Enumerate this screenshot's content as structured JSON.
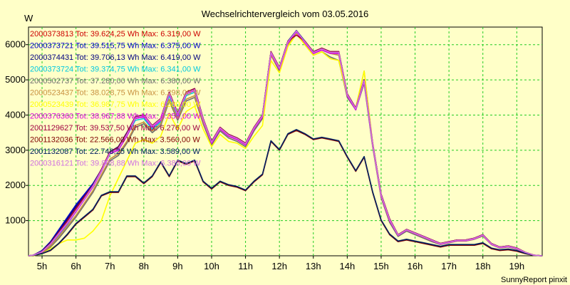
{
  "chart_data": {
    "type": "line",
    "title": "Wechselrichtervergleich vom 03.05.2016",
    "ylabel": "W",
    "xlabel": "",
    "credit": "SunnyReport pinxit",
    "ylim": [
      0,
      6500
    ],
    "xlim": [
      4.6,
      19.75
    ],
    "x_ticks": [
      5,
      6,
      7,
      8,
      9,
      10,
      11,
      12,
      13,
      14,
      15,
      16,
      17,
      18,
      19
    ],
    "x_tick_labels": [
      "5h",
      "6h",
      "7h",
      "8h",
      "9h",
      "10h",
      "11h",
      "12h",
      "13h",
      "14h",
      "15h",
      "16h",
      "17h",
      "18h",
      "19h"
    ],
    "y_ticks": [
      1000,
      2000,
      3000,
      4000,
      5000,
      6000
    ],
    "y_tick_labels": [
      "1000",
      "2000",
      "3000",
      "4000",
      "5000",
      "6000"
    ],
    "grid": true,
    "legend_position": "top-left",
    "colors": {
      "background": "#ffffc8",
      "plot_background": "#ffffc8",
      "grid": "#22cc22",
      "axis": "#000000"
    },
    "x": [
      4.6,
      4.75,
      5.0,
      5.25,
      5.5,
      5.75,
      6.0,
      6.25,
      6.5,
      6.75,
      7.0,
      7.25,
      7.5,
      7.75,
      8.0,
      8.25,
      8.5,
      8.75,
      9.0,
      9.25,
      9.5,
      9.75,
      10.0,
      10.25,
      10.5,
      10.75,
      11.0,
      11.25,
      11.5,
      11.75,
      12.0,
      12.25,
      12.5,
      12.75,
      13.0,
      13.25,
      13.5,
      13.75,
      14.0,
      14.25,
      14.5,
      14.75,
      15.0,
      15.25,
      15.5,
      15.75,
      16.0,
      16.25,
      16.5,
      16.75,
      17.0,
      17.25,
      17.5,
      17.75,
      18.0,
      18.25,
      18.5,
      18.75,
      19.0,
      19.25,
      19.5,
      19.75
    ],
    "series": [
      {
        "name": "2000373813 Tot: 39.624,25 Wh Max: 6.319,00 W",
        "color": "#cc0000",
        "values": [
          0,
          20,
          120,
          350,
          650,
          950,
          1300,
          1650,
          2000,
          2450,
          2950,
          3050,
          3450,
          3950,
          4000,
          3700,
          3900,
          4650,
          4050,
          4650,
          4750,
          3900,
          3250,
          3650,
          3450,
          3350,
          3200,
          3650,
          4000,
          5800,
          5350,
          6100,
          6350,
          6100,
          5800,
          5900,
          5800,
          5800,
          4600,
          4200,
          5000,
          3200,
          1750,
          1050,
          600,
          750,
          650,
          550,
          450,
          350,
          400,
          450,
          450,
          500,
          600,
          350,
          250,
          280,
          220,
          100,
          20,
          0
        ]
      },
      {
        "name": "2000373721 Tot: 39.515,75 Wh Max: 6.375,00 W",
        "color": "#0000cc",
        "values": [
          0,
          20,
          150,
          400,
          750,
          1100,
          1450,
          1750,
          2050,
          2450,
          2900,
          3050,
          3450,
          3900,
          3950,
          3650,
          3850,
          4600,
          4000,
          4600,
          4700,
          3850,
          3200,
          3600,
          3400,
          3300,
          3150,
          3600,
          3950,
          5750,
          5300,
          6050,
          6300,
          6050,
          5750,
          5850,
          5750,
          5750,
          4550,
          4150,
          4950,
          3150,
          1700,
          1000,
          580,
          730,
          630,
          530,
          430,
          330,
          380,
          430,
          430,
          480,
          580,
          330,
          230,
          260,
          200,
          90,
          15,
          0
        ]
      },
      {
        "name": "2000374431 Tot: 39.706,13 Wh Max: 6.419,00 W",
        "color": "#000080",
        "values": [
          0,
          20,
          130,
          380,
          700,
          1050,
          1400,
          1700,
          2000,
          2450,
          2950,
          3100,
          3500,
          3950,
          4000,
          3700,
          3900,
          4650,
          4050,
          4650,
          4750,
          3900,
          3250,
          3650,
          3450,
          3350,
          3200,
          3650,
          4000,
          5800,
          5350,
          6100,
          6400,
          6100,
          5800,
          5900,
          5800,
          5800,
          4600,
          4200,
          5000,
          3200,
          1750,
          1050,
          600,
          750,
          650,
          550,
          450,
          350,
          400,
          450,
          450,
          500,
          600,
          350,
          250,
          280,
          220,
          100,
          20,
          0
        ]
      },
      {
        "name": "2000373724 Tot: 39.374,75 Wh Max: 6.341,00 W",
        "color": "#00c8e0",
        "values": [
          0,
          20,
          100,
          300,
          600,
          900,
          1250,
          1600,
          1950,
          2400,
          2900,
          3000,
          3400,
          3850,
          3900,
          3600,
          3800,
          4550,
          3950,
          4550,
          4650,
          3850,
          3200,
          3600,
          3400,
          3300,
          3150,
          3600,
          3950,
          5750,
          5300,
          6050,
          6330,
          6050,
          5750,
          5850,
          5750,
          5700,
          4550,
          4150,
          4950,
          3150,
          1700,
          1000,
          580,
          730,
          630,
          530,
          430,
          330,
          380,
          430,
          430,
          480,
          580,
          330,
          230,
          260,
          200,
          90,
          15,
          0
        ]
      },
      {
        "name": "2000502737 Tot: 37.280,00 Wh Max: 6.380,00 W",
        "color": "#707070",
        "values": [
          0,
          10,
          80,
          250,
          500,
          800,
          1100,
          1450,
          1800,
          2250,
          2700,
          2850,
          3200,
          3650,
          3750,
          3500,
          3700,
          4400,
          3850,
          4400,
          4500,
          3750,
          3150,
          3550,
          3350,
          3250,
          3100,
          3550,
          3900,
          5700,
          5250,
          6000,
          6380,
          6000,
          5700,
          5800,
          5650,
          5550,
          4500,
          4150,
          4900,
          3100,
          1650,
          950,
          550,
          700,
          600,
          500,
          400,
          320,
          370,
          420,
          420,
          470,
          560,
          320,
          220,
          250,
          190,
          80,
          10,
          0
        ]
      },
      {
        "name": "2000523437 Tot: 38.028,75 Wh Max: 6.298,00 W",
        "color": "#c89040",
        "values": [
          0,
          10,
          90,
          280,
          550,
          850,
          1150,
          1500,
          1850,
          2300,
          2750,
          2900,
          3250,
          3700,
          3800,
          3550,
          3750,
          4450,
          3900,
          4450,
          4550,
          3800,
          3200,
          3600,
          3400,
          3300,
          3150,
          3600,
          3950,
          5700,
          5300,
          6000,
          6300,
          6050,
          5750,
          5850,
          5750,
          5700,
          4550,
          4200,
          5250,
          3200,
          1700,
          1000,
          600,
          730,
          630,
          530,
          430,
          330,
          380,
          430,
          430,
          480,
          580,
          330,
          230,
          260,
          200,
          90,
          15,
          0
        ]
      },
      {
        "name": "2000523439 Tot: 36.987,75 Wh Max: 6.380,00 W",
        "color": "#ffff00",
        "values": [
          0,
          0,
          60,
          200,
          350,
          450,
          450,
          500,
          700,
          1000,
          1700,
          2200,
          2700,
          3200,
          3300,
          3200,
          3400,
          4050,
          3600,
          4100,
          4250,
          3600,
          3100,
          3450,
          3250,
          3200,
          3050,
          3400,
          3700,
          5550,
          5200,
          5950,
          6300,
          6000,
          5700,
          5800,
          5600,
          5550,
          4550,
          4200,
          5250,
          3150,
          1700,
          1000,
          600,
          730,
          630,
          530,
          430,
          330,
          380,
          430,
          430,
          480,
          580,
          330,
          230,
          260,
          200,
          90,
          15,
          0
        ]
      },
      {
        "name": "2000376360 Tot: 38.967,88 Wh Max: 6.359,00 W",
        "color": "#e000e0",
        "values": [
          0,
          15,
          110,
          330,
          620,
          920,
          1250,
          1600,
          1950,
          2400,
          2900,
          3000,
          3400,
          3900,
          3950,
          3650,
          3850,
          4600,
          4000,
          4600,
          4700,
          3850,
          3200,
          3600,
          3400,
          3300,
          3150,
          3600,
          3950,
          5750,
          5300,
          6050,
          6360,
          6050,
          5750,
          5850,
          5750,
          5750,
          4550,
          4150,
          4950,
          3150,
          1700,
          1000,
          580,
          730,
          630,
          530,
          430,
          330,
          380,
          430,
          430,
          480,
          580,
          330,
          230,
          260,
          200,
          90,
          15,
          0
        ]
      },
      {
        "name": "2001129627 Tot: 39.537,50 Wh Max: 6.276,00 W",
        "color": "#a00040",
        "values": [
          0,
          20,
          125,
          360,
          680,
          1000,
          1350,
          1680,
          2000,
          2450,
          2950,
          3080,
          3480,
          3950,
          4000,
          3700,
          3900,
          4650,
          4050,
          4650,
          4750,
          3900,
          3250,
          3650,
          3450,
          3350,
          3200,
          3650,
          4000,
          5800,
          5350,
          6100,
          6276,
          6100,
          5800,
          5900,
          5800,
          5800,
          4600,
          4200,
          5000,
          3200,
          1750,
          1050,
          600,
          750,
          650,
          550,
          450,
          350,
          400,
          450,
          450,
          500,
          600,
          350,
          250,
          280,
          220,
          100,
          20,
          0
        ]
      },
      {
        "name": "2001132036 Tot: 22.566,00 Wh Max: 3.560,00 W",
        "color": "#800000",
        "values": [
          0,
          10,
          60,
          150,
          350,
          600,
          900,
          1100,
          1300,
          1700,
          1800,
          1800,
          2250,
          2250,
          2050,
          2250,
          2650,
          2250,
          2700,
          2600,
          2700,
          2100,
          1900,
          2100,
          2000,
          1950,
          1850,
          2100,
          2300,
          3250,
          3000,
          3450,
          3560,
          3450,
          3300,
          3350,
          3300,
          3250,
          2800,
          2400,
          2800,
          1800,
          1000,
          600,
          400,
          450,
          400,
          350,
          300,
          250,
          300,
          300,
          300,
          300,
          350,
          200,
          150,
          170,
          130,
          60,
          10,
          0
        ]
      },
      {
        "name": "2001132087 Tot: 22.748,25 Wh Max: 3.589,00 W",
        "color": "#002060",
        "values": [
          0,
          10,
          65,
          160,
          360,
          620,
          920,
          1120,
          1320,
          1720,
          1820,
          1820,
          2270,
          2270,
          2070,
          2270,
          2670,
          2270,
          2720,
          2620,
          2720,
          2120,
          1920,
          2120,
          2020,
          1970,
          1870,
          2120,
          2320,
          3270,
          3020,
          3470,
          3589,
          3470,
          3320,
          3370,
          3320,
          3270,
          2820,
          2420,
          2820,
          1820,
          1020,
          620,
          420,
          470,
          420,
          370,
          320,
          270,
          320,
          320,
          320,
          320,
          370,
          220,
          170,
          190,
          150,
          70,
          15,
          0
        ]
      },
      {
        "name": "2000316121 Tot: 39.888,88 Wh Max: 6.388,00 W",
        "color": "#d070e0",
        "values": [
          0,
          18,
          115,
          340,
          640,
          940,
          1280,
          1620,
          1980,
          2420,
          2920,
          3040,
          3440,
          3920,
          3980,
          3680,
          3880,
          4620,
          4020,
          4620,
          4720,
          3880,
          3230,
          3630,
          3430,
          3330,
          3180,
          3630,
          3980,
          5780,
          5330,
          6080,
          6388,
          6080,
          5780,
          5880,
          5780,
          5780,
          4580,
          4180,
          4980,
          3180,
          1730,
          1030,
          590,
          740,
          640,
          540,
          440,
          340,
          390,
          440,
          440,
          490,
          590,
          340,
          240,
          270,
          210,
          95,
          18,
          0
        ]
      }
    ]
  }
}
